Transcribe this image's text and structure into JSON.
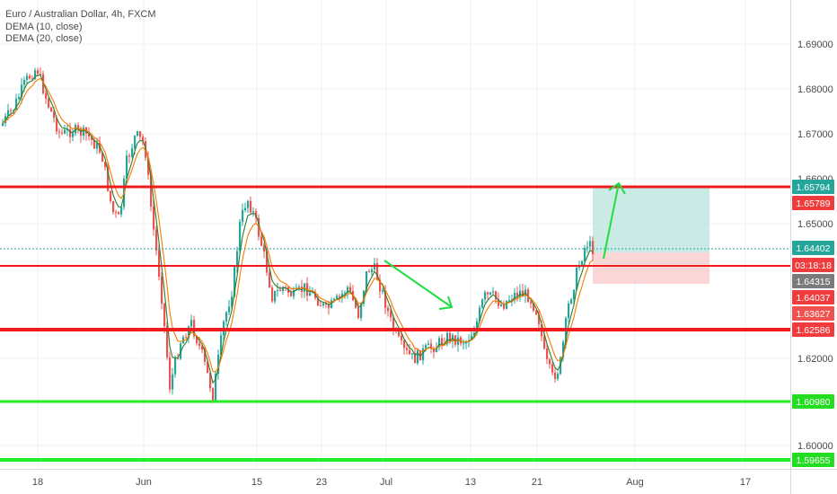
{
  "legend": {
    "symbol": "Euro / Australian Dollar, 4h, FXCM",
    "indicator1": "DEMA (10, close)",
    "indicator2": "DEMA (20, close)"
  },
  "price_axis": {
    "ticks": [
      "1.69000",
      "1.68000",
      "1.67000",
      "1.66000",
      "1.65000",
      "1.62000",
      "1.60000"
    ]
  },
  "time_axis": {
    "labels": [
      "18",
      "Jun",
      "15",
      "23",
      "Jul",
      "13",
      "21",
      "Aug",
      "17"
    ]
  },
  "price_labels": [
    {
      "text": "1.65794",
      "color": "#26a69a"
    },
    {
      "text": "1.65789",
      "color": "#ef3b3b"
    },
    {
      "text": "1.64402",
      "color": "#26a69a"
    },
    {
      "text": "03:18:18",
      "color": "#ef3b3b"
    },
    {
      "text": "1.64315",
      "color": "#7b7b7b"
    },
    {
      "text": "1.64037",
      "color": "#ef3b3b"
    },
    {
      "text": "1.63627",
      "color": "#ef5350"
    },
    {
      "text": "1.62586",
      "color": "#ef3b3b"
    },
    {
      "text": "1.60980",
      "color": "#22dd22"
    },
    {
      "text": "1.59655",
      "color": "#22dd22"
    }
  ],
  "colors": {
    "up_candle": "#26a69a",
    "down_candle": "#ef5350",
    "dema10": "#2e7d32",
    "dema20": "#f57c00",
    "resistance": "#ee1c1c",
    "support": "#22ee22",
    "annotation_arrow": "#22dd44",
    "profit_zone": "#bfe6e1",
    "loss_zone": "#f9cfd0"
  }
}
